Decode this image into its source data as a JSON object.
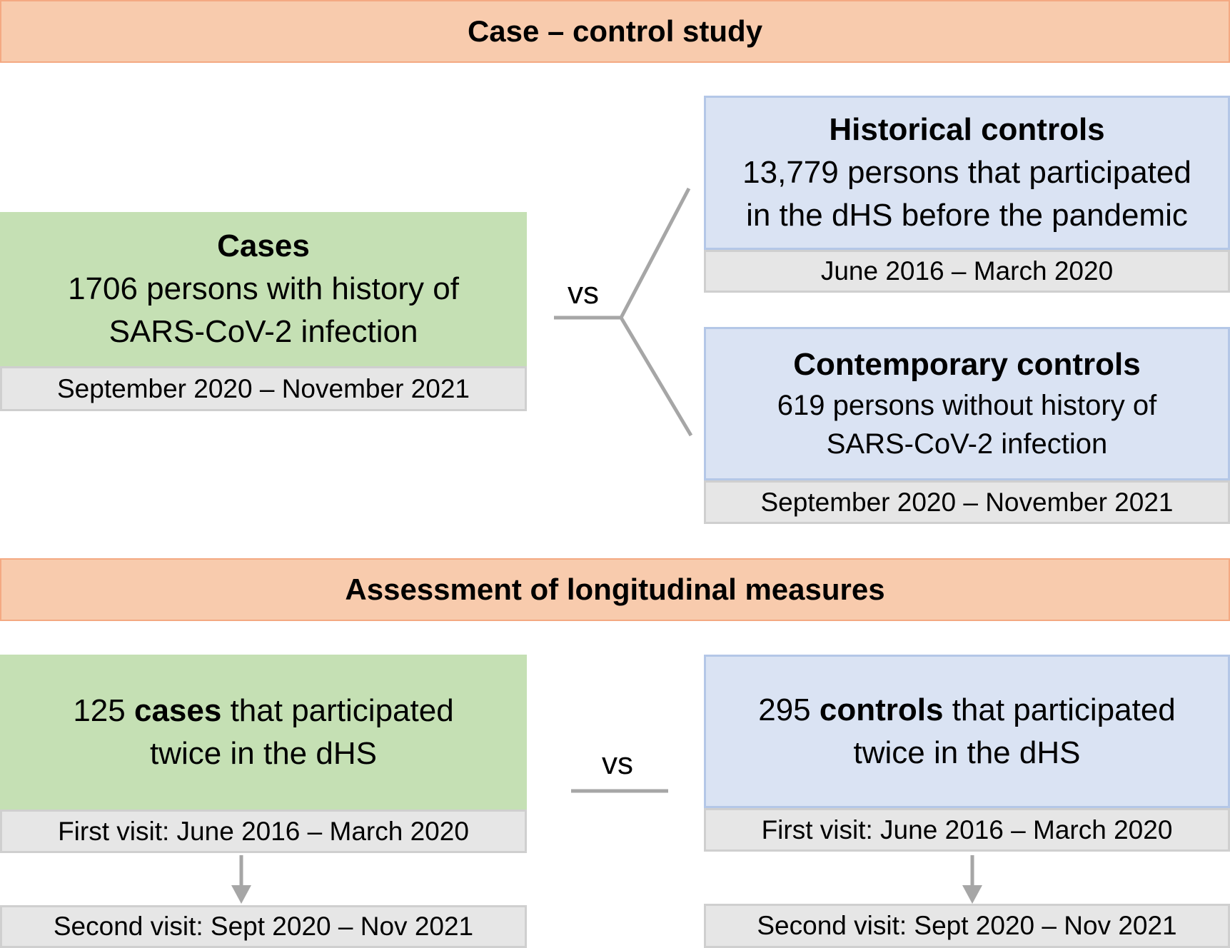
{
  "case_control": {
    "header": "Case – control study",
    "cases": {
      "title": "Cases",
      "line1": "1706 persons with history of",
      "line2": "SARS-CoV-2 infection",
      "period": "September 2020 – November 2021"
    },
    "vs_label": "vs",
    "historical": {
      "title": "Historical controls",
      "line1": "13,779 persons that participated",
      "line2": "in the dHS before the pandemic",
      "period": "June 2016 – March 2020"
    },
    "contemporary": {
      "title": "Contemporary controls",
      "line1": "619 persons without history of",
      "line2": "SARS-CoV-2 infection",
      "period": "September 2020 – November 2021"
    }
  },
  "longitudinal": {
    "header": "Assessment of longitudinal measures",
    "cases": {
      "count": "125",
      "bold": "cases",
      "rest": "that participated",
      "line2": "twice in the dHS",
      "first_visit": "First visit: June 2016 – March 2020",
      "second_visit": "Second visit: Sept 2020 – Nov 2021"
    },
    "vs_label": "vs",
    "controls": {
      "count": "295",
      "bold": "controls",
      "rest": "that participated",
      "line2": "twice in the dHS",
      "first_visit": "First visit: June 2016 – March 2020",
      "second_visit": "Second visit: Sept 2020 – Nov 2021"
    }
  },
  "colors": {
    "banner_fill": "#f8cbad",
    "cases_fill": "#c5e0b4",
    "controls_fill": "#dae3f3",
    "period_fill": "#e6e6e6",
    "connector": "#a6a6a6"
  }
}
